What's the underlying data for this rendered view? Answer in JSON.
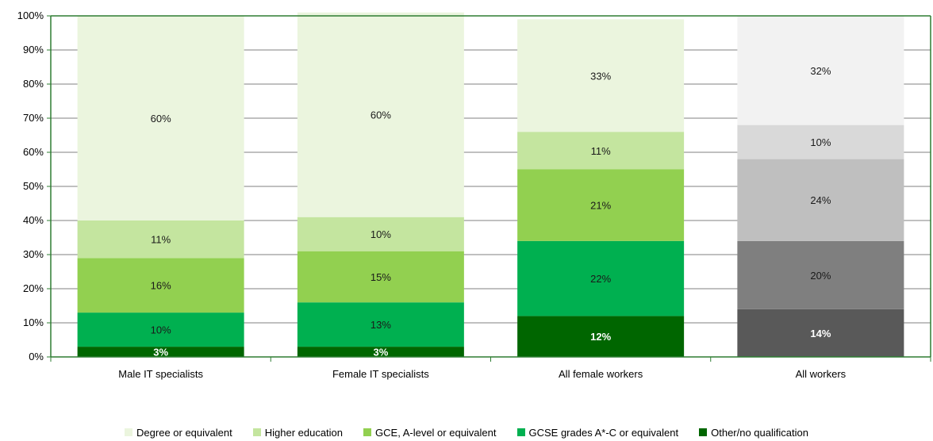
{
  "chart_data": {
    "type": "bar",
    "stacked": true,
    "title": "",
    "xlabel": "",
    "ylabel": "",
    "ylim": [
      0,
      100
    ],
    "y_ticks": [
      "0%",
      "10%",
      "20%",
      "30%",
      "40%",
      "50%",
      "60%",
      "70%",
      "80%",
      "90%",
      "100%"
    ],
    "grid": true,
    "legend_position": "bottom",
    "categories": [
      "Male IT specialists",
      "Female IT specialists",
      "All female workers",
      "All workers"
    ],
    "series": [
      {
        "name": "Other/no qualification",
        "values": [
          3,
          3,
          12,
          14
        ],
        "labels": [
          "3%",
          "3%",
          "12%",
          "14%"
        ],
        "colors": [
          "#006600",
          "#006600",
          "#006600",
          "#595959"
        ],
        "label_colors": [
          "#ffffff",
          "#ffffff",
          "#ffffff",
          "#ffffff"
        ]
      },
      {
        "name": "GCSE grades A*-C or equivalent",
        "values": [
          10,
          13,
          22,
          20
        ],
        "labels": [
          "10%",
          "13%",
          "22%",
          "20%"
        ],
        "colors": [
          "#00b050",
          "#00b050",
          "#00b050",
          "#7f7f7f"
        ],
        "label_colors": [
          "#1a1a1a",
          "#1a1a1a",
          "#1a1a1a",
          "#1a1a1a"
        ]
      },
      {
        "name": "GCE, A-level or equivalent",
        "values": [
          16,
          15,
          21,
          24
        ],
        "labels": [
          "16%",
          "15%",
          "21%",
          "24%"
        ],
        "colors": [
          "#92d050",
          "#92d050",
          "#92d050",
          "#bfbfbf"
        ],
        "label_colors": [
          "#1a1a1a",
          "#1a1a1a",
          "#1a1a1a",
          "#1a1a1a"
        ]
      },
      {
        "name": "Higher education",
        "values": [
          11,
          10,
          11,
          10
        ],
        "labels": [
          "11%",
          "10%",
          "11%",
          "10%"
        ],
        "colors": [
          "#c4e59f",
          "#c4e59f",
          "#c4e59f",
          "#d9d9d9"
        ],
        "label_colors": [
          "#1a1a1a",
          "#1a1a1a",
          "#1a1a1a",
          "#1a1a1a"
        ]
      },
      {
        "name": "Degree or equivalent",
        "values": [
          60,
          60,
          33,
          32
        ],
        "labels": [
          "60%",
          "60%",
          "33%",
          "32%"
        ],
        "colors": [
          "#ebf5de",
          "#ebf5de",
          "#ebf5de",
          "#f2f2f2"
        ],
        "label_colors": [
          "#1a1a1a",
          "#1a1a1a",
          "#1a1a1a",
          "#1a1a1a"
        ]
      }
    ],
    "legend": [
      {
        "name": "Degree or equivalent",
        "color": "#ebf5de"
      },
      {
        "name": "Higher education",
        "color": "#c4e59f"
      },
      {
        "name": "GCE, A-level or equivalent",
        "color": "#92d050"
      },
      {
        "name": "GCSE grades A*-C or equivalent",
        "color": "#00b050"
      },
      {
        "name": "Other/no qualification",
        "color": "#006600"
      }
    ],
    "axis_color": "#2e7d32",
    "grid_color": "#808080"
  }
}
